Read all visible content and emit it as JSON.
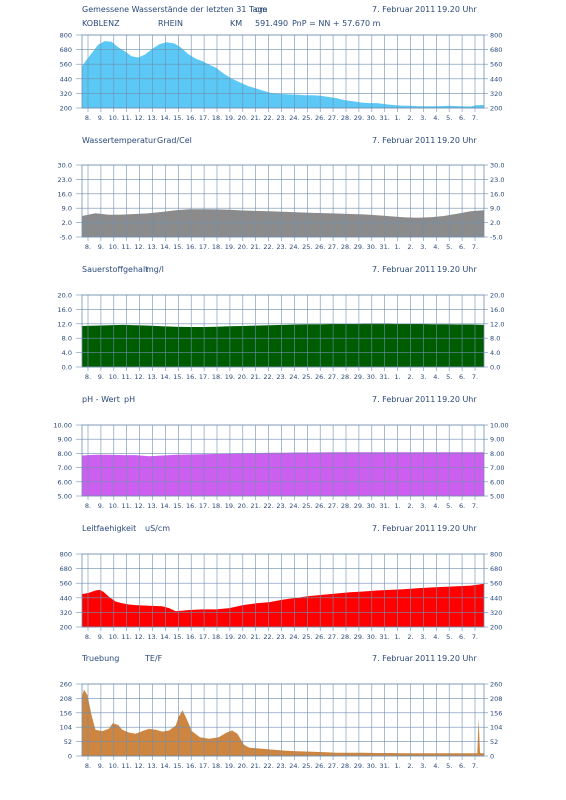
{
  "x_labels": [
    "8.",
    "9.",
    "10.",
    "11.",
    "12.",
    "13.",
    "14.",
    "15.",
    "16.",
    "17.",
    "18.",
    "19.",
    "20.",
    "21.",
    "22.",
    "23.",
    "24.",
    "25.",
    "26.",
    "27.",
    "28.",
    "29.",
    "30.",
    "31.",
    "1.",
    "2.",
    "3.",
    "4.",
    "5.",
    "6.",
    "7."
  ],
  "timestamp": {
    "date": "7. Februar",
    "year": "2011",
    "time": "19.20 Uhr"
  },
  "location": {
    "city": "KOBLENZ",
    "river": "RHEIN",
    "km_label": "KM",
    "km": "591.490",
    "pnp": "PnP =  NN +   57.670 m"
  },
  "grid_color": "#6f8fb0",
  "chart_data": [
    {
      "type": "area",
      "title": "Gemessene Wasserstände der letzten 31 Tage",
      "unit": "cm",
      "color": "#5bc8f5",
      "ylim": [
        200,
        800
      ],
      "ytick_labels": [
        "800",
        "680",
        "560",
        "440",
        "320",
        "200"
      ],
      "x": [
        0,
        0.3,
        0.8,
        1.2,
        1.7,
        2.2,
        2.7,
        3.2,
        3.7,
        4.2,
        4.7,
        5.3,
        5.8,
        6.3,
        6.9,
        7.4,
        7.9,
        8.5,
        9,
        9.5,
        10,
        10.6,
        11.2,
        11.8,
        12.4,
        13,
        13.6,
        14.2,
        14.8,
        15.4,
        16,
        16.6,
        17.2,
        17.8,
        18.4,
        19,
        19.6,
        20.2,
        20.8,
        21.4,
        22,
        22.6,
        23.2,
        23.8,
        24.4,
        25,
        25.6,
        26.2,
        26.8,
        27.4,
        28,
        28.6,
        29,
        29.4,
        29.7,
        30
      ],
      "values": [
        540,
        590,
        660,
        720,
        750,
        745,
        700,
        665,
        625,
        615,
        640,
        690,
        725,
        740,
        730,
        695,
        645,
        605,
        585,
        555,
        530,
        480,
        440,
        410,
        380,
        360,
        340,
        320,
        315,
        312,
        310,
        305,
        305,
        300,
        290,
        280,
        265,
        255,
        245,
        240,
        240,
        232,
        225,
        220,
        218,
        216,
        215,
        215,
        216,
        218,
        216,
        213,
        212,
        222,
        224,
        225
      ]
    },
    {
      "type": "area",
      "title": "Wassertemperatur",
      "unit": "Grad/Cel",
      "color": "#8b8b8b",
      "ylim": [
        -5,
        30
      ],
      "ytick_labels": [
        "30.0",
        "23.0",
        "16.0",
        "9.0",
        "2.0",
        "-5.0"
      ],
      "x": [
        0,
        1,
        2,
        3,
        4,
        5,
        6,
        7,
        8,
        9,
        10,
        11,
        12,
        13,
        14,
        15,
        16,
        17,
        18,
        19,
        20,
        21,
        22,
        23,
        24,
        25,
        26,
        27,
        28,
        29,
        30
      ],
      "values": [
        5.2,
        6.5,
        5.8,
        5.9,
        6.2,
        6.5,
        7.2,
        8.0,
        8.5,
        8.5,
        8.4,
        8.2,
        7.9,
        7.7,
        7.5,
        7.3,
        7.0,
        6.8,
        6.6,
        6.4,
        6.2,
        6.0,
        5.6,
        5.1,
        4.6,
        4.4,
        4.6,
        5.2,
        6.3,
        7.5,
        8.0
      ]
    },
    {
      "type": "area",
      "title": "Sauerstoffgehalt",
      "unit": "mg/l",
      "color": "#005c00",
      "ylim": [
        0,
        20
      ],
      "ytick_labels": [
        "20.0",
        "16.0",
        "12.0",
        "8.0",
        "4.0",
        "0.0"
      ],
      "x": [
        0,
        1,
        2,
        3,
        4,
        5,
        6,
        7,
        8,
        9,
        10,
        11,
        12,
        13,
        14,
        15,
        16,
        17,
        18,
        19,
        20,
        21,
        22,
        23,
        24,
        25,
        26,
        27,
        28,
        29,
        30
      ],
      "values": [
        11.4,
        11.5,
        11.6,
        11.7,
        11.6,
        11.5,
        11.3,
        11.2,
        11.1,
        11.1,
        11.2,
        11.3,
        11.4,
        11.5,
        11.6,
        11.7,
        11.8,
        11.9,
        11.9,
        12.0,
        12.0,
        12.1,
        12.1,
        12.1,
        12.0,
        12.0,
        11.9,
        11.9,
        11.8,
        11.8,
        11.7
      ]
    },
    {
      "type": "area",
      "title": "pH - Wert",
      "unit": "pH",
      "color": "#cc5ff0",
      "ylim": [
        5,
        10
      ],
      "ytick_labels": [
        "10.00",
        "9.00",
        "8.00",
        "7.00",
        "6.00",
        "5.00"
      ],
      "x": [
        0,
        1,
        2,
        3,
        4,
        5,
        6,
        7,
        8,
        9,
        10,
        11,
        12,
        13,
        14,
        15,
        16,
        17,
        18,
        19,
        20,
        21,
        22,
        23,
        24,
        25,
        26,
        27,
        28,
        29,
        30
      ],
      "values": [
        7.85,
        7.9,
        7.9,
        7.88,
        7.88,
        7.8,
        7.85,
        7.9,
        7.92,
        7.94,
        7.96,
        7.98,
        8.0,
        8.02,
        8.04,
        8.05,
        8.06,
        8.06,
        8.07,
        8.08,
        8.08,
        8.08,
        8.08,
        8.08,
        8.08,
        8.08,
        8.08,
        8.08,
        8.08,
        8.08,
        8.08
      ]
    },
    {
      "type": "area",
      "title": "Leitfaehigkeit",
      "unit": "uS/cm",
      "color": "#ff0000",
      "ylim": [
        200,
        800
      ],
      "ytick_labels": [
        "800",
        "680",
        "560",
        "440",
        "320",
        "200"
      ],
      "x": [
        0,
        0.5,
        1,
        1.3,
        1.6,
        2,
        2.5,
        3,
        3.5,
        4,
        5,
        6,
        6.5,
        7,
        7.5,
        8,
        9,
        10,
        11,
        12,
        13,
        14,
        15,
        16,
        17,
        18,
        19,
        20,
        21,
        22,
        23,
        24,
        25,
        26,
        27,
        28,
        29,
        29.5,
        30
      ],
      "values": [
        470,
        480,
        500,
        505,
        490,
        450,
        410,
        395,
        385,
        380,
        375,
        370,
        355,
        330,
        335,
        340,
        345,
        345,
        355,
        380,
        395,
        405,
        425,
        440,
        455,
        465,
        475,
        485,
        492,
        500,
        505,
        510,
        518,
        525,
        530,
        535,
        540,
        548,
        555
      ]
    },
    {
      "type": "area",
      "title": "Truebung",
      "unit": "TE/F",
      "color": "#cd853f",
      "ylim": [
        0,
        260
      ],
      "ytick_labels": [
        "260",
        "208",
        "156",
        "104",
        "52",
        "0"
      ],
      "x": [
        0,
        0.15,
        0.4,
        0.7,
        1,
        1.5,
        2,
        2.3,
        2.7,
        3,
        3.5,
        4,
        4.5,
        5,
        5.5,
        6,
        6.5,
        7,
        7.2,
        7.5,
        7.8,
        8.2,
        8.8,
        9.5,
        10.2,
        10.8,
        11.2,
        11.6,
        12.1,
        12.5,
        13,
        14,
        15,
        16,
        17,
        18,
        19,
        20,
        21,
        22,
        23,
        24,
        25,
        26,
        27,
        28,
        29,
        29.5,
        29.6,
        29.7,
        29.8,
        30
      ],
      "values": [
        215,
        240,
        220,
        150,
        95,
        90,
        98,
        118,
        112,
        95,
        85,
        80,
        90,
        98,
        95,
        88,
        92,
        110,
        140,
        165,
        135,
        90,
        68,
        62,
        68,
        85,
        92,
        80,
        40,
        30,
        28,
        24,
        20,
        17,
        16,
        14,
        12,
        12,
        12,
        11,
        11,
        10,
        10,
        10,
        10,
        10,
        10,
        10,
        135,
        12,
        10,
        10
      ]
    }
  ]
}
